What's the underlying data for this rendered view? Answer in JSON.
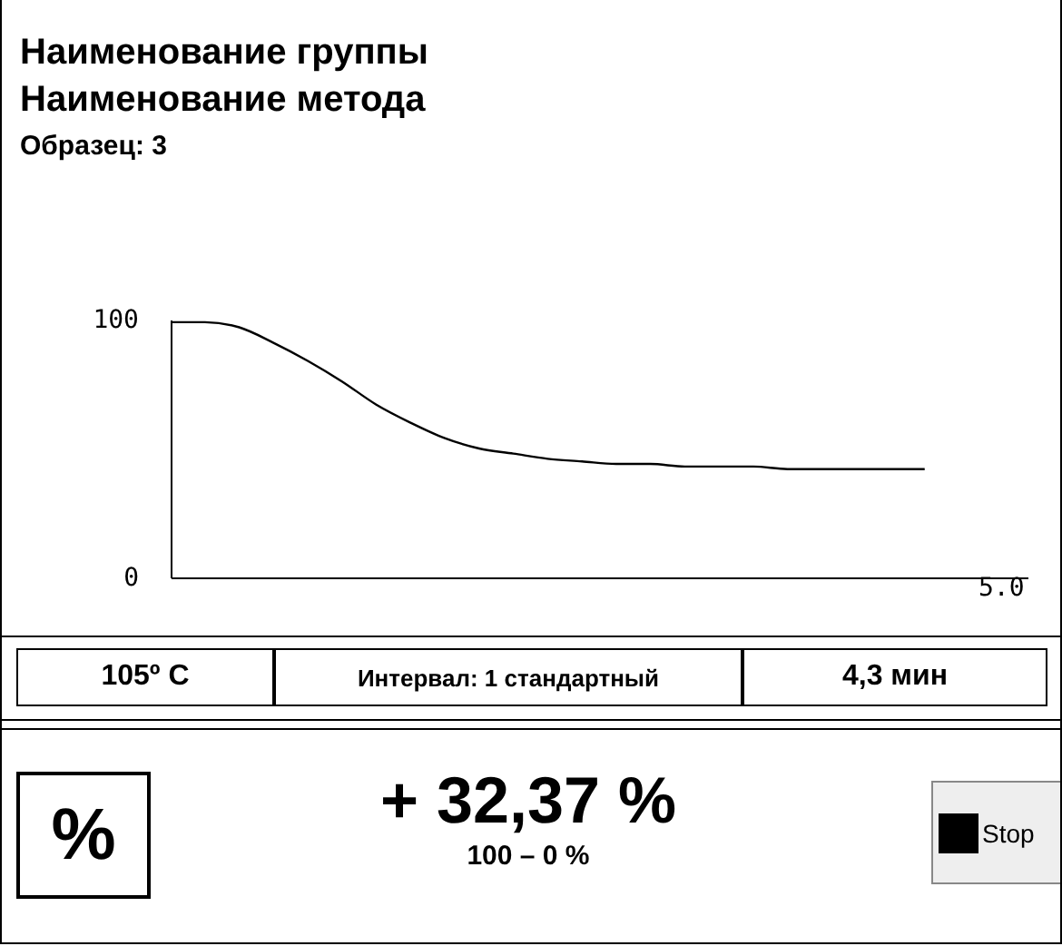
{
  "chart_data": {
    "type": "line",
    "title": "Наименование группы",
    "subtitle": "Наименование метода",
    "annotations": [
      "Образец: 3",
      "105º C",
      "Интервал: 1 стандартный",
      "4,3 мин",
      "%",
      "+ 32,37 %",
      "100 – 0 %",
      "Stop",
      "5.0"
    ],
    "categories": [
      null,
      null,
      null,
      null,
      null,
      null,
      null,
      null,
      null,
      null,
      null,
      null,
      null,
      null,
      null,
      null,
      null,
      null,
      null,
      null,
      null,
      null,
      null,
      null,
      null,
      null
    ],
    "series": [
      {
        "color": "#000000",
        "values": [
          99,
          99,
          97,
          91,
          84,
          76,
          67,
          60,
          54,
          50,
          48,
          46,
          45,
          44,
          44,
          43,
          43,
          43,
          42,
          42,
          42,
          42,
          42,
          null,
          null,
          null
        ]
      }
    ],
    "ylim": [
      0,
      100
    ],
    "yticks": [
      0,
      100
    ],
    "grid": false
  }
}
